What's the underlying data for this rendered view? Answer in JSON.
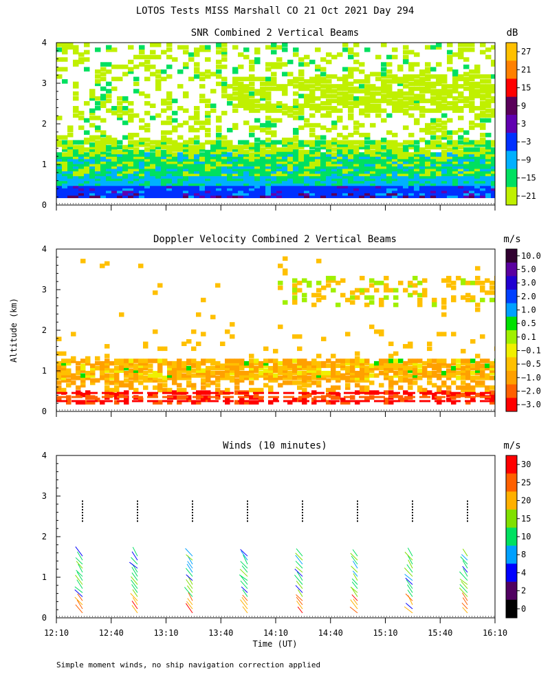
{
  "title": "LOTOS Tests MISS Marshall CO  21 Oct 2021 Day 294",
  "ylabel": "Altitude (km)",
  "footnote": "Simple moment winds, no ship navigation correction applied",
  "chart_data": [
    {
      "type": "heatmap",
      "title": "SNR Combined 2 Vertical Beams",
      "unit": "dB",
      "ylim": [
        0,
        4
      ],
      "yticks": [
        "0",
        "1",
        "2",
        "3",
        "4"
      ],
      "colorbar": {
        "labels": [
          "27",
          "21",
          "15",
          "9",
          "3",
          "−3",
          "−9",
          "−15",
          "−21"
        ],
        "colors": [
          "#ffc000",
          "#ff8000",
          "#ff0000",
          "#5a005a",
          "#6000b0",
          "#0030ff",
          "#00b0ff",
          "#00e060",
          "#c0f000"
        ]
      }
    },
    {
      "type": "heatmap",
      "title": "Doppler Velocity Combined 2 Vertical Beams",
      "unit": "m/s",
      "ylim": [
        0,
        4
      ],
      "yticks": [
        "0",
        "1",
        "2",
        "3",
        "4"
      ],
      "colorbar": {
        "labels": [
          "10.0",
          "5.0",
          "3.0",
          "2.0",
          "1.0",
          "0.5",
          "0.1",
          "−0.1",
          "−0.5",
          "−1.0",
          "−2.0",
          "−3.0"
        ],
        "colors": [
          "#300030",
          "#5a00a0",
          "#2000d0",
          "#0040ff",
          "#00a0ff",
          "#00e000",
          "#a0f000",
          "#f0f000",
          "#ffc000",
          "#ffa000",
          "#ff6000",
          "#ff0000"
        ]
      }
    },
    {
      "type": "scatter",
      "title": "Winds (10 minutes)",
      "unit": "m/s",
      "ylim": [
        0,
        4
      ],
      "yticks": [
        "0",
        "1",
        "2",
        "3",
        "4"
      ],
      "xlabel": "Time (UT)",
      "xticks": [
        "12:10",
        "12:40",
        "13:10",
        "13:40",
        "14:10",
        "14:40",
        "15:10",
        "15:40",
        "16:10"
      ],
      "colorbar": {
        "labels": [
          "30",
          "25",
          "20",
          "15",
          "10",
          "8",
          "4",
          "2",
          "0"
        ],
        "colors": [
          "#ff0000",
          "#ff6000",
          "#ffb000",
          "#80e000",
          "#00e060",
          "#00a0ff",
          "#0000ff",
          "#500060",
          "#000000"
        ]
      }
    }
  ]
}
